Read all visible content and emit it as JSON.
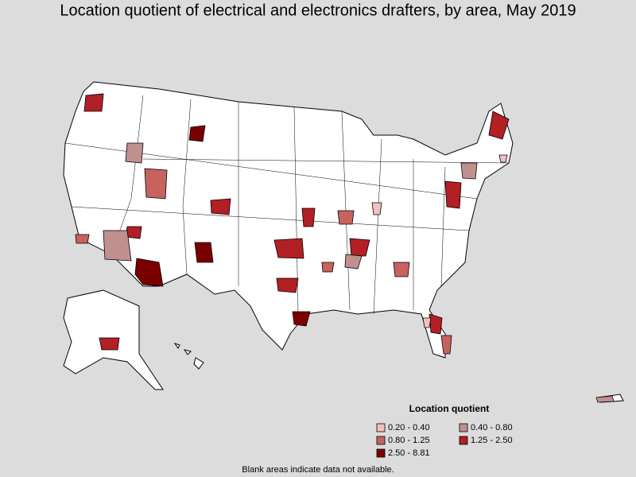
{
  "header": {
    "title": "Location quotient of electrical and electronics drafters, by area, May 2019"
  },
  "legend": {
    "title": "Location quotient",
    "items": [
      {
        "label": "0.20 - 0.40",
        "color": "#f4c0c4"
      },
      {
        "label": "0.40 - 0.80",
        "color": "#c0908f"
      },
      {
        "label": "0.80 - 1.25",
        "color": "#c8625f"
      },
      {
        "label": "1.25 - 2.50",
        "color": "#b21f24"
      },
      {
        "label": "2.50 - 8.81",
        "color": "#7a0000"
      }
    ]
  },
  "footnote": "Blank areas indicate data not available."
}
